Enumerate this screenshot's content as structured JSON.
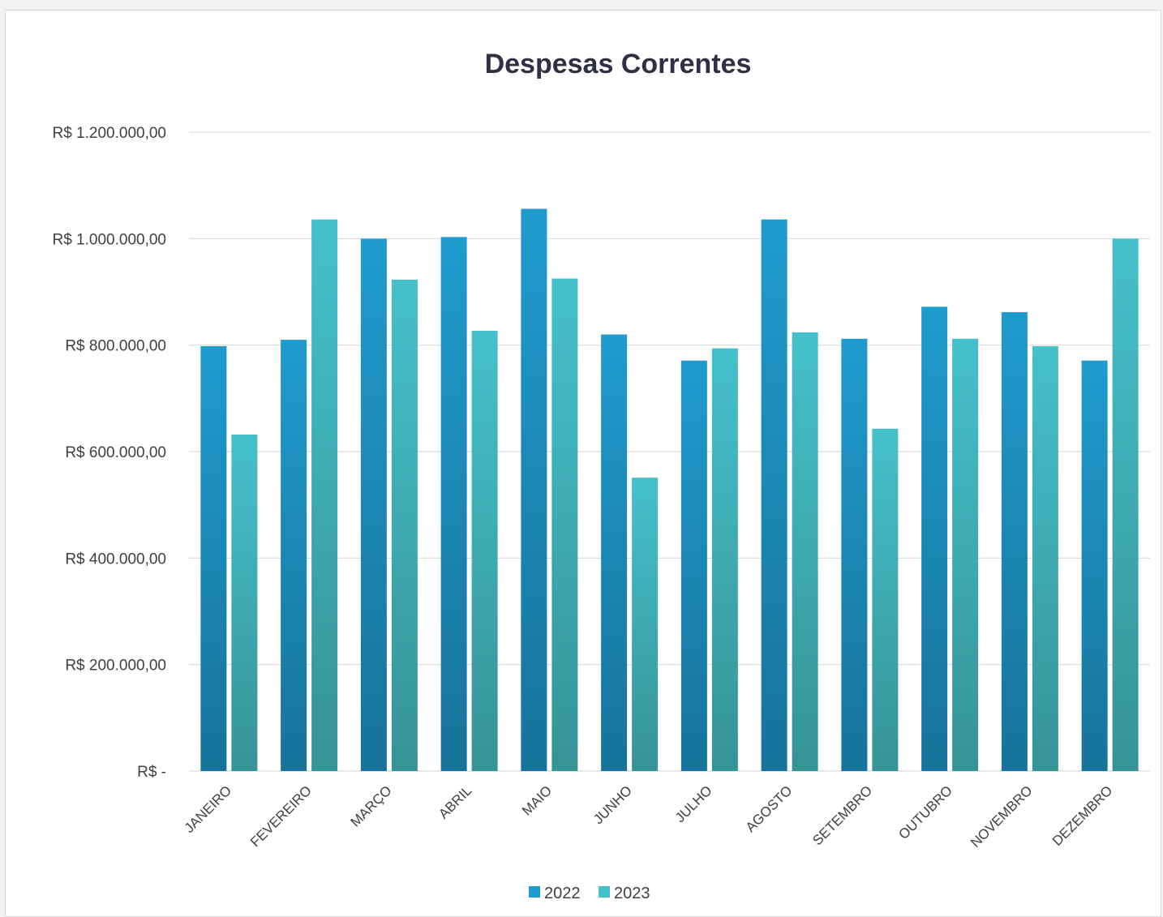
{
  "chart_data": {
    "type": "bar",
    "title": "Despesas Correntes",
    "xlabel": "",
    "ylabel": "",
    "ylim": [
      0,
      1200000
    ],
    "yticks": [
      0,
      200000,
      400000,
      600000,
      800000,
      1000000,
      1200000
    ],
    "ytick_labels": [
      "R$ -",
      "R$ 200.000,00",
      "R$ 400.000,00",
      "R$ 600.000,00",
      "R$ 800.000,00",
      "R$ 1.000.000,00",
      "R$ 1.200.000,00"
    ],
    "categories": [
      "JANEIRO",
      "FEVEREIRO",
      "MARÇO",
      "ABRIL",
      "MAIO",
      "JUNHO",
      "JULHO",
      "AGOSTO",
      "SETEMBRO",
      "OUTUBRO",
      "NOVEMBRO",
      "DEZEMBRO"
    ],
    "series": [
      {
        "name": "2022",
        "color": "#1f9bce",
        "color_bottom": "#17739a",
        "values": [
          798000,
          810000,
          1000000,
          1003000,
          1056000,
          820000,
          771000,
          1036000,
          812000,
          872000,
          862000,
          771000
        ]
      },
      {
        "name": "2023",
        "color": "#45c1cb",
        "color_bottom": "#369396",
        "values": [
          632000,
          1036000,
          923000,
          827000,
          925000,
          551000,
          794000,
          824000,
          643000,
          812000,
          798000,
          1000000
        ]
      }
    ],
    "grid": true,
    "legend": "bottom"
  }
}
